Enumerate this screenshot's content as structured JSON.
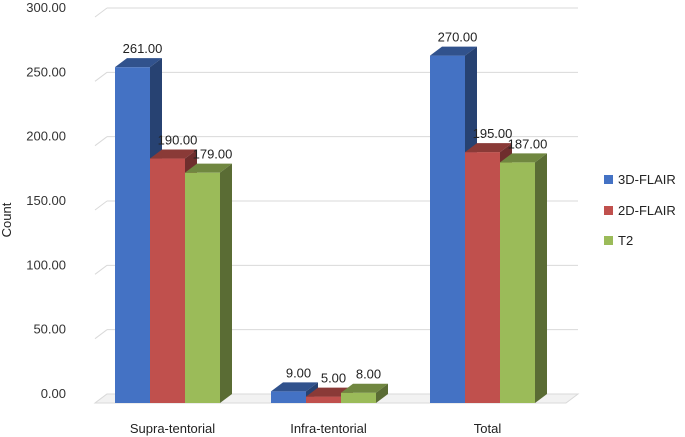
{
  "chart_data": {
    "type": "bar",
    "title": "",
    "xlabel": "",
    "ylabel": "Count",
    "ylim": [
      0,
      300
    ],
    "yticks": [
      0,
      50,
      100,
      150,
      200,
      250,
      300
    ],
    "ytick_labels": [
      "0.00",
      "50.00",
      "100.00",
      "150.00",
      "200.00",
      "250.00",
      "300.00"
    ],
    "categories": [
      "Supra-tentorial",
      "Infra-tentorial",
      "Total"
    ],
    "series": [
      {
        "name": "3D-FLAIR",
        "color": "#4472C4",
        "values": [
          261,
          9,
          270
        ],
        "labels": [
          "261.00",
          "9.00",
          "270.00"
        ]
      },
      {
        "name": "2D-FLAIR",
        "color": "#C0504D",
        "values": [
          190,
          5,
          195
        ],
        "labels": [
          "190.00",
          "5.00",
          "195.00"
        ]
      },
      {
        "name": "T2",
        "color": "#9BBB59",
        "values": [
          179,
          8,
          187
        ],
        "labels": [
          "179.00",
          "8.00",
          "187.00"
        ]
      }
    ],
    "grid": true,
    "legend": "right",
    "style": "3d-column"
  }
}
